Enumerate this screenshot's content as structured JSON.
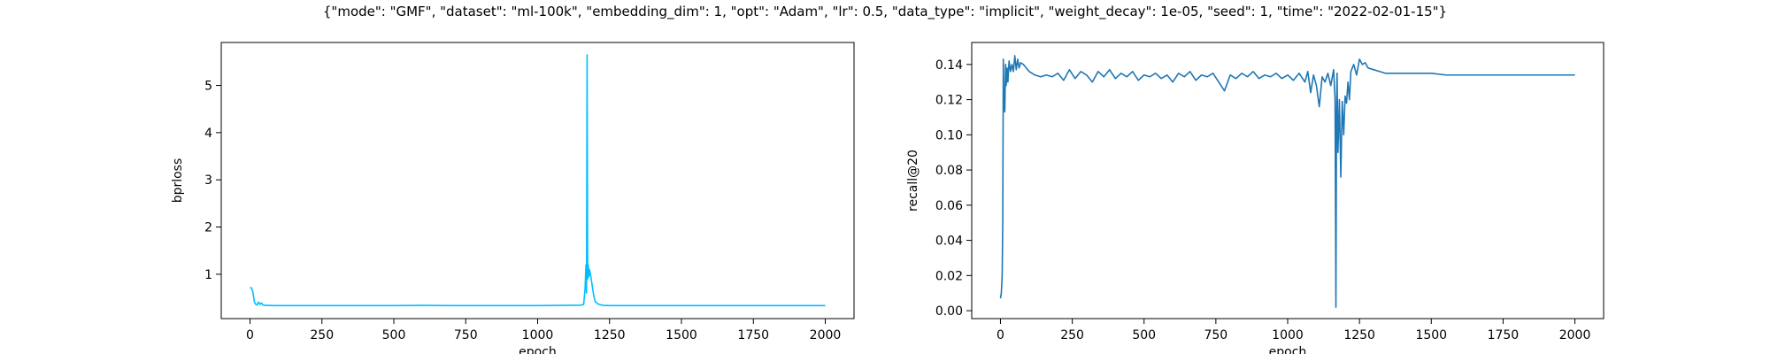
{
  "figure_title": "{\"mode\": \"GMF\", \"dataset\": \"ml-100k\", \"embedding_dim\": 1, \"opt\": \"Adam\", \"lr\": 0.5, \"data_type\": \"implicit\", \"weight_decay\": 1e-05, \"seed\": 1, \"time\": \"2022-02-01-15\"}",
  "chart_data": [
    {
      "type": "line",
      "xlabel": "epoch",
      "ylabel": "bprloss",
      "xlim": [
        -100,
        2100
      ],
      "ylim": [
        0.06,
        5.91
      ],
      "xticks": [
        0,
        250,
        500,
        750,
        1000,
        1250,
        1500,
        1750,
        2000
      ],
      "yticks": [
        1,
        2,
        3,
        4,
        5
      ],
      "color": "#00bfff",
      "series": [
        {
          "x": [
            0,
            5,
            10,
            15,
            20,
            25,
            30,
            35,
            40,
            45,
            50,
            60,
            80,
            100,
            150,
            200,
            300,
            400,
            500,
            600,
            700,
            800,
            900,
            1000,
            1100,
            1150,
            1160,
            1165,
            1168,
            1170,
            1172,
            1174,
            1176,
            1178,
            1180,
            1185,
            1190,
            1195,
            1200,
            1210,
            1220,
            1230,
            1250,
            1300,
            1400,
            1500,
            1600,
            1700,
            1800,
            1900,
            2000
          ],
          "y": [
            0.72,
            0.71,
            0.62,
            0.42,
            0.36,
            0.35,
            0.41,
            0.36,
            0.39,
            0.35,
            0.34,
            0.34,
            0.335,
            0.335,
            0.335,
            0.335,
            0.335,
            0.335,
            0.335,
            0.34,
            0.335,
            0.335,
            0.335,
            0.335,
            0.34,
            0.345,
            0.36,
            0.7,
            1.2,
            0.6,
            5.65,
            0.9,
            1.2,
            0.95,
            1.1,
            0.95,
            0.75,
            0.55,
            0.42,
            0.37,
            0.35,
            0.34,
            0.335,
            0.335,
            0.335,
            0.335,
            0.335,
            0.335,
            0.335,
            0.335,
            0.335
          ]
        }
      ]
    },
    {
      "type": "line",
      "xlabel": "epoch",
      "ylabel": "recall@20",
      "xlim": [
        -100,
        2100
      ],
      "ylim": [
        -0.0045,
        0.1525
      ],
      "xticks": [
        0,
        250,
        500,
        750,
        1000,
        1250,
        1500,
        1750,
        2000
      ],
      "yticks": [
        0.0,
        0.02,
        0.04,
        0.06,
        0.08,
        0.1,
        0.12,
        0.14
      ],
      "ytick_labels": [
        "0.00",
        "0.02",
        "0.04",
        "0.06",
        "0.08",
        "0.10",
        "0.12",
        "0.14"
      ],
      "color": "#1f77b4",
      "series": [
        {
          "x": [
            0,
            3,
            6,
            8,
            10,
            12,
            15,
            18,
            20,
            23,
            26,
            30,
            35,
            40,
            45,
            50,
            55,
            60,
            65,
            70,
            80,
            90,
            100,
            120,
            140,
            160,
            180,
            200,
            220,
            240,
            260,
            280,
            300,
            320,
            340,
            360,
            380,
            400,
            420,
            440,
            460,
            480,
            500,
            520,
            540,
            560,
            580,
            600,
            620,
            640,
            660,
            680,
            700,
            720,
            740,
            760,
            780,
            800,
            820,
            840,
            860,
            880,
            900,
            920,
            940,
            960,
            980,
            1000,
            1020,
            1040,
            1060,
            1070,
            1080,
            1090,
            1100,
            1110,
            1120,
            1130,
            1140,
            1150,
            1160,
            1165,
            1168,
            1170,
            1172,
            1175,
            1180,
            1185,
            1190,
            1195,
            1200,
            1205,
            1210,
            1215,
            1220,
            1230,
            1240,
            1250,
            1260,
            1270,
            1280,
            1300,
            1320,
            1340,
            1360,
            1400,
            1450,
            1500,
            1550,
            1600,
            1650,
            1700,
            1750,
            1800,
            1850,
            1900,
            1950,
            2000
          ],
          "y": [
            0.007,
            0.01,
            0.02,
            0.05,
            0.143,
            0.12,
            0.113,
            0.14,
            0.128,
            0.138,
            0.13,
            0.142,
            0.136,
            0.14,
            0.136,
            0.145,
            0.137,
            0.143,
            0.138,
            0.141,
            0.14,
            0.138,
            0.136,
            0.134,
            0.133,
            0.134,
            0.133,
            0.135,
            0.131,
            0.137,
            0.132,
            0.136,
            0.134,
            0.13,
            0.136,
            0.133,
            0.137,
            0.132,
            0.135,
            0.133,
            0.136,
            0.131,
            0.134,
            0.133,
            0.135,
            0.132,
            0.134,
            0.13,
            0.135,
            0.133,
            0.136,
            0.131,
            0.134,
            0.133,
            0.135,
            0.13,
            0.125,
            0.134,
            0.132,
            0.135,
            0.133,
            0.136,
            0.132,
            0.134,
            0.133,
            0.135,
            0.132,
            0.134,
            0.131,
            0.135,
            0.13,
            0.136,
            0.124,
            0.134,
            0.128,
            0.116,
            0.133,
            0.13,
            0.135,
            0.128,
            0.137,
            0.12,
            0.002,
            0.11,
            0.135,
            0.09,
            0.12,
            0.076,
            0.119,
            0.1,
            0.122,
            0.118,
            0.13,
            0.12,
            0.136,
            0.14,
            0.134,
            0.143,
            0.14,
            0.141,
            0.138,
            0.137,
            0.136,
            0.135,
            0.135,
            0.135,
            0.135,
            0.135,
            0.134,
            0.134,
            0.134,
            0.134,
            0.134,
            0.134,
            0.134,
            0.134,
            0.134,
            0.134
          ]
        }
      ]
    }
  ]
}
